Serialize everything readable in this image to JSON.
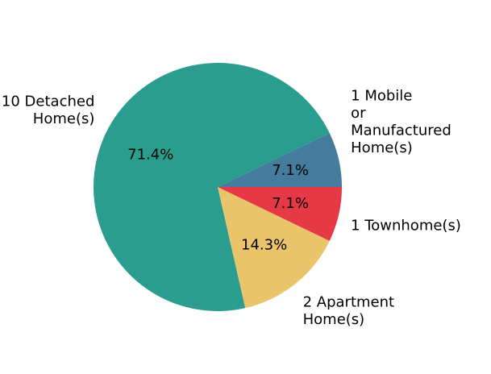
{
  "chart_data": {
    "type": "pie",
    "title": "",
    "start_angle_deg": 0,
    "direction": "counterclockwise",
    "slices": [
      {
        "label_lines": [
          "1 Mobile",
          "or",
          "Manufactured",
          "Home(s)"
        ],
        "value": 1,
        "pct_label": "7.1%",
        "color": "#457b9d"
      },
      {
        "label_lines": [
          "10 Detached",
          "Home(s)"
        ],
        "value": 10,
        "pct_label": "71.4%",
        "color": "#2a9d8f"
      },
      {
        "label_lines": [
          "2 Apartment",
          "Home(s)"
        ],
        "value": 2,
        "pct_label": "14.3%",
        "color": "#e9c46a"
      },
      {
        "label_lines": [
          "1 Townhome(s)"
        ],
        "value": 1,
        "pct_label": "7.1%",
        "color": "#e63946"
      }
    ]
  }
}
